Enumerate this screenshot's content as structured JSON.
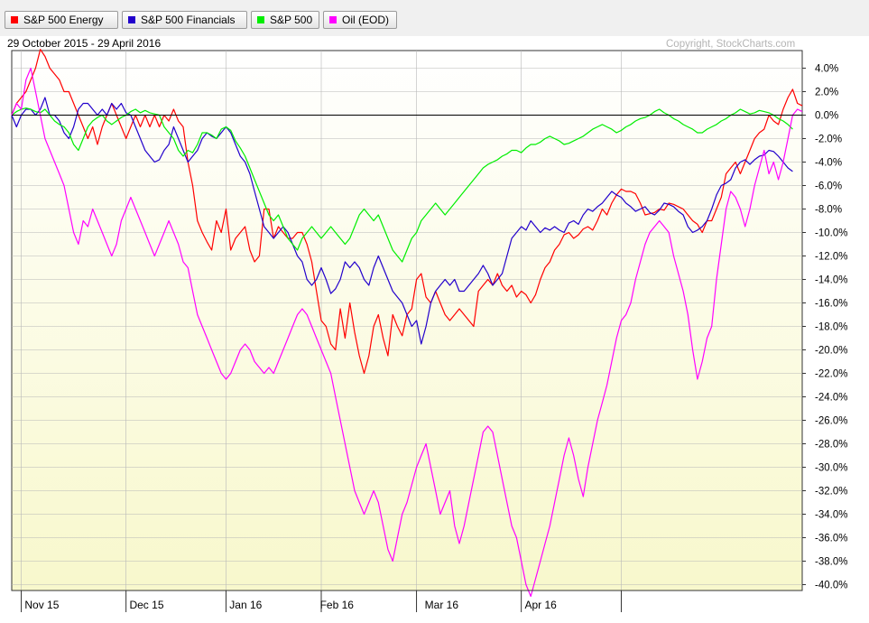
{
  "header": {
    "date_range": "29 October 2015 - 29 April 2016",
    "copyright": "Copyright, StockCharts.com"
  },
  "legend": [
    {
      "label": "S&P 500 Energy",
      "color": "#ff0000"
    },
    {
      "label": "S&P 500 Financials",
      "color": "#2200cc"
    },
    {
      "label": "S&P 500",
      "color": "#00ee00"
    },
    {
      "label": "Oil (EOD)",
      "color": "#ff00ff"
    }
  ],
  "chart_data": {
    "type": "line",
    "x_tick_labels": [
      "Nov 15",
      "Dec 15",
      "Jan 16",
      "Feb 16",
      "Mar 16",
      "Apr 16"
    ],
    "y_tick_labels": [
      "4.0%",
      "2.0%",
      "0.0%",
      "-2.0%",
      "-4.0%",
      "-6.0%",
      "-8.0%",
      "-10.0%",
      "-12.0%",
      "-14.0%",
      "-16.0%",
      "-18.0%",
      "-20.0%",
      "-22.0%",
      "-24.0%",
      "-26.0%",
      "-28.0%",
      "-30.0%",
      "-32.0%",
      "-34.0%",
      "-36.0%",
      "-38.0%",
      "-40.0%"
    ],
    "ylim": [
      -40.5,
      5.5
    ],
    "y_unit": "%",
    "zero_line": true,
    "grid": true,
    "axis_side": "right",
    "background_gradient": [
      "#ffffff",
      "#f8f8cc"
    ],
    "series": [
      {
        "name": "S&P 500 Energy",
        "color": "#ff0000",
        "values": [
          0,
          1,
          1.5,
          2,
          3,
          4,
          5.6,
          5,
          4,
          3.5,
          3,
          2,
          2,
          1,
          0,
          -1,
          -2,
          -1,
          -2.5,
          -1,
          0,
          1,
          0,
          -1,
          -2,
          -1,
          0,
          -1,
          0,
          -1,
          0,
          -1,
          0,
          -0.5,
          0.5,
          -0.5,
          -1,
          -4,
          -6,
          -9,
          -10,
          -10.8,
          -11.5,
          -9,
          -10,
          -8,
          -11.5,
          -10.5,
          -10,
          -9.5,
          -11.5,
          -12.5,
          -12,
          -8,
          -8,
          -10.5,
          -9.5,
          -10,
          -10.5,
          -10.5,
          -10,
          -10,
          -11,
          -12.5,
          -15,
          -17.5,
          -18,
          -19.5,
          -20,
          -16.5,
          -19,
          -16,
          -18.5,
          -20.5,
          -22,
          -20.5,
          -18,
          -17,
          -19,
          -20.5,
          -17,
          -18,
          -18.8,
          -17,
          -16.5,
          -14,
          -13.5,
          -15.5,
          -16,
          -15,
          -16,
          -17,
          -17.5,
          -17,
          -16.5,
          -17,
          -17.5,
          -18,
          -15,
          -14.5,
          -14,
          -14.5,
          -13.5,
          -14.5,
          -15,
          -14.5,
          -15.5,
          -15,
          -15.3,
          -16,
          -15.3,
          -14,
          -13,
          -12.5,
          -11.5,
          -11,
          -10.2,
          -10,
          -10.5,
          -10.2,
          -9.7,
          -9.5,
          -9.8,
          -9,
          -8,
          -8.5,
          -7.5,
          -6.8,
          -6.3,
          -6.5,
          -6.5,
          -6.7,
          -7.5,
          -8.5,
          -8.4,
          -8.3,
          -8,
          -8.1,
          -7.5,
          -7.6,
          -7.8,
          -8,
          -8.5,
          -9,
          -9.3,
          -10,
          -9,
          -9,
          -8,
          -7,
          -5,
          -4.5,
          -4,
          -5,
          -4,
          -3,
          -2,
          -1.5,
          -1.2,
          0,
          -0.5,
          -0.8,
          0.5,
          1.5,
          2.2,
          1,
          0.8
        ]
      },
      {
        "name": "S&P 500 Financials",
        "color": "#2200cc",
        "values": [
          0,
          -1,
          0,
          0.5,
          0.5,
          0,
          0.5,
          1.5,
          0,
          0,
          -0.5,
          -1.5,
          -2,
          -1,
          0.5,
          1,
          1,
          0.5,
          0,
          0.5,
          0,
          1,
          0.5,
          1,
          0.2,
          0,
          -1,
          -2,
          -3,
          -3.5,
          -4,
          -3.8,
          -3,
          -2.5,
          -1,
          -2,
          -3,
          -4,
          -3.5,
          -3,
          -2,
          -1.5,
          -1.8,
          -2,
          -1.5,
          -1,
          -1.5,
          -2.5,
          -3.5,
          -4,
          -5,
          -6.5,
          -8,
          -9.5,
          -10,
          -10.5,
          -10,
          -9.5,
          -10,
          -11,
          -12,
          -12.5,
          -14,
          -14.5,
          -14,
          -13,
          -14,
          -15.2,
          -14.8,
          -14,
          -12.5,
          -13,
          -12.5,
          -13,
          -14,
          -14.5,
          -13,
          -12,
          -13,
          -14,
          -15,
          -15.5,
          -16,
          -17,
          -18,
          -17.5,
          -19.5,
          -18,
          -16,
          -15,
          -14.5,
          -14,
          -14.5,
          -14,
          -15,
          -15,
          -14.5,
          -14,
          -13.5,
          -12.8,
          -13.5,
          -14.5,
          -14,
          -13.5,
          -12,
          -10.5,
          -10,
          -9.5,
          -9.8,
          -9,
          -9.5,
          -10,
          -9.6,
          -9.8,
          -9.5,
          -9.8,
          -10,
          -9.2,
          -9,
          -9.3,
          -8.5,
          -8,
          -8.2,
          -7.8,
          -7.5,
          -7,
          -6.5,
          -6.8,
          -7,
          -7.5,
          -7.8,
          -8.2,
          -8,
          -7.8,
          -8.3,
          -8.5,
          -8.1,
          -7.5,
          -7.6,
          -7.8,
          -8.2,
          -8.5,
          -9.5,
          -10,
          -9.8,
          -9.5,
          -9,
          -8,
          -6.8,
          -6,
          -5.8,
          -5.5,
          -4.5,
          -4,
          -3.8,
          -4.2,
          -3.8,
          -3.5,
          -3.4,
          -3,
          -3.1,
          -3.5,
          -4,
          -4.5,
          -4.8
        ]
      },
      {
        "name": "S&P 500",
        "color": "#00ee00",
        "values": [
          0,
          0.3,
          0.5,
          0.6,
          0.5,
          0.3,
          0.2,
          0.5,
          0,
          -0.5,
          -0.8,
          -1,
          -1.5,
          -2.5,
          -3,
          -2,
          -1,
          -0.5,
          -0.2,
          0,
          -0.5,
          -0.8,
          -0.5,
          -0.2,
          0,
          0.3,
          0.5,
          0.2,
          0.4,
          0.2,
          0.1,
          0,
          -1,
          -1.5,
          -2,
          -3,
          -3.5,
          -3,
          -3.2,
          -2.5,
          -1.5,
          -1.5,
          -1.7,
          -2,
          -1.2,
          -1,
          -1.3,
          -2.2,
          -2.8,
          -3.5,
          -4.5,
          -5.5,
          -6.5,
          -7.5,
          -8.5,
          -9,
          -8.5,
          -9.5,
          -10.5,
          -11,
          -11.5,
          -10.5,
          -10,
          -9.5,
          -10,
          -10.5,
          -10,
          -9.5,
          -10,
          -10.5,
          -11,
          -10.5,
          -9.5,
          -8.5,
          -8,
          -8.5,
          -9,
          -8.5,
          -9.5,
          -10.5,
          -11.5,
          -12,
          -12.5,
          -11.5,
          -10.5,
          -10,
          -9,
          -8.5,
          -8,
          -7.5,
          -8,
          -8.5,
          -8,
          -7.5,
          -7,
          -6.5,
          -6,
          -5.5,
          -5,
          -4.5,
          -4.2,
          -4,
          -3.8,
          -3.5,
          -3.3,
          -3,
          -3,
          -3.2,
          -2.8,
          -2.5,
          -2.5,
          -2.3,
          -2,
          -1.8,
          -2,
          -2.2,
          -2.5,
          -2.4,
          -2.2,
          -2,
          -1.8,
          -1.5,
          -1.2,
          -1,
          -0.8,
          -1,
          -1.2,
          -1.5,
          -1.3,
          -1,
          -0.8,
          -0.5,
          -0.3,
          -0.2,
          0,
          0.3,
          0.5,
          0.2,
          0,
          -0.3,
          -0.5,
          -0.8,
          -1,
          -1.2,
          -1.5,
          -1.5,
          -1.2,
          -1,
          -0.8,
          -0.5,
          -0.3,
          0,
          0.2,
          0.5,
          0.3,
          0.1,
          0.2,
          0.4,
          0.3,
          0.2,
          0,
          -0.3,
          -0.5,
          -0.8,
          -1.2
        ]
      },
      {
        "name": "Oil (EOD)",
        "color": "#ff00ff",
        "values": [
          0,
          1,
          0.5,
          3,
          4,
          2,
          0,
          -2,
          -3,
          -4,
          -5,
          -6,
          -8,
          -10,
          -11,
          -9,
          -9.5,
          -8,
          -9,
          -10,
          -11,
          -12,
          -11,
          -9,
          -8,
          -7,
          -8,
          -9,
          -10,
          -11,
          -12,
          -11,
          -10,
          -9,
          -10,
          -11,
          -12.5,
          -13,
          -15,
          -17,
          -18,
          -19,
          -20,
          -21,
          -22,
          -22.5,
          -22,
          -21,
          -20,
          -19.5,
          -20,
          -21,
          -21.5,
          -22,
          -21.5,
          -22,
          -21,
          -20,
          -19,
          -18,
          -17,
          -16.5,
          -17,
          -18,
          -19,
          -20,
          -21,
          -22,
          -24,
          -26,
          -28,
          -30,
          -32,
          -33,
          -34,
          -33,
          -32,
          -33,
          -35,
          -37,
          -38,
          -36,
          -34,
          -33,
          -31.5,
          -30,
          -29,
          -28,
          -30,
          -32,
          -34,
          -33,
          -32,
          -35,
          -36.5,
          -35,
          -33,
          -31,
          -29,
          -27,
          -26.5,
          -27,
          -29,
          -31,
          -33,
          -35,
          -36,
          -38,
          -40,
          -41,
          -39.5,
          -38,
          -36.5,
          -35,
          -33,
          -31,
          -29,
          -27.5,
          -29,
          -31,
          -32.5,
          -30,
          -28,
          -26,
          -24.5,
          -23,
          -21,
          -19,
          -17.5,
          -17,
          -16,
          -14,
          -12.5,
          -11,
          -10,
          -9.5,
          -9,
          -9.5,
          -10,
          -12,
          -13.5,
          -15,
          -17,
          -20,
          -22.5,
          -21,
          -19,
          -18,
          -14,
          -11,
          -8,
          -6.5,
          -7,
          -8,
          -9.5,
          -8,
          -6,
          -4.5,
          -3,
          -5,
          -4,
          -5.5,
          -4,
          -2,
          0,
          0.5,
          0.3
        ]
      }
    ]
  }
}
